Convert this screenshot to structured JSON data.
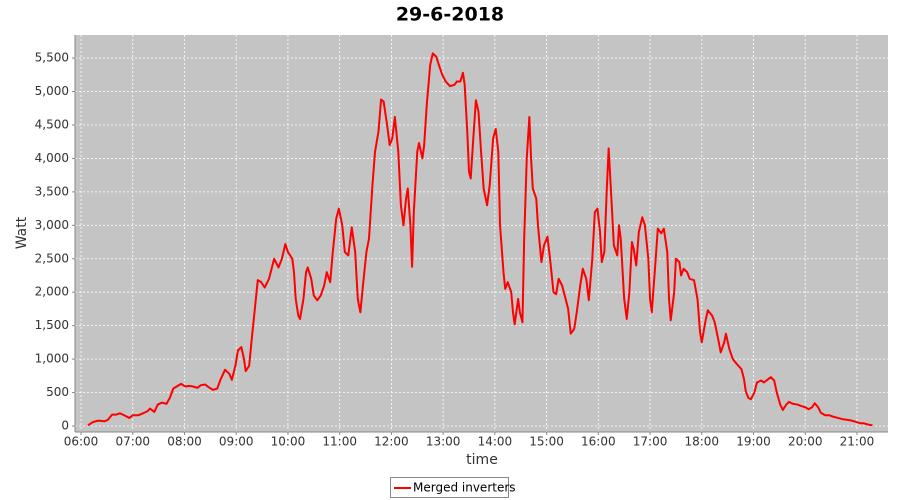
{
  "chart_data": {
    "type": "line",
    "title": "29-6-2018",
    "x_label": "time",
    "y_label": "Watt",
    "grid": true,
    "legend": "bottom",
    "xlim": [
      "05:53",
      "21:36"
    ],
    "xticks": [
      "06:00",
      "07:00",
      "08:00",
      "09:00",
      "10:00",
      "11:00",
      "12:00",
      "13:00",
      "14:00",
      "15:00",
      "16:00",
      "17:00",
      "18:00",
      "19:00",
      "20:00",
      "21:00"
    ],
    "ylim": [
      -90,
      5845
    ],
    "yticks": [
      0,
      500,
      {
        "value": 1000,
        "label": "1,000"
      },
      {
        "value": 1500,
        "label": "1,500"
      },
      {
        "value": 2000,
        "label": "2,000"
      },
      {
        "value": 2500,
        "label": "2,500"
      },
      {
        "value": 3000,
        "label": "3,000"
      },
      {
        "value": 3500,
        "label": "3,500"
      },
      {
        "value": 4000,
        "label": "4,000"
      },
      {
        "value": 4500,
        "label": "4,500"
      },
      {
        "value": 5000,
        "label": "5,000"
      },
      {
        "value": 5500,
        "label": "5,500"
      }
    ],
    "x": [
      "06:08",
      "06:14",
      "06:20",
      "06:27",
      "06:31",
      "06:36",
      "06:41",
      "06:45",
      "06:50",
      "06:56",
      "07:00",
      "07:06",
      "07:12",
      "07:17",
      "07:20",
      "07:25",
      "07:29",
      "07:34",
      "07:39",
      "07:43",
      "07:47",
      "07:51",
      "07:56",
      "08:01",
      "08:05",
      "08:10",
      "08:15",
      "08:19",
      "08:24",
      "08:28",
      "08:33",
      "08:38",
      "08:42",
      "08:47",
      "08:52",
      "08:55",
      "08:59",
      "09:02",
      "09:06",
      "09:09",
      "09:11",
      "09:15",
      "09:18",
      "09:22",
      "09:25",
      "09:29",
      "09:33",
      "09:38",
      "09:44",
      "09:49",
      "09:53",
      "09:57",
      "10:00",
      "10:05",
      "10:07",
      "10:09",
      "10:12",
      "10:14",
      "10:18",
      "10:21",
      "10:23",
      "10:27",
      "10:30",
      "10:34",
      "10:38",
      "10:42",
      "10:45",
      "10:49",
      "10:52",
      "10:56",
      "10:59",
      "11:03",
      "11:06",
      "11:10",
      "11:14",
      "11:18",
      "11:21",
      "11:24",
      "11:27",
      "11:31",
      "11:34",
      "11:38",
      "11:41",
      "11:45",
      "11:48",
      "11:51",
      "11:55",
      "11:58",
      "12:01",
      "12:04",
      "12:08",
      "12:11",
      "12:14",
      "12:17",
      "12:19",
      "12:22",
      "12:24",
      "12:26",
      "12:30",
      "12:32",
      "12:36",
      "12:38",
      "12:41",
      "12:45",
      "12:48",
      "12:52",
      "12:55",
      "12:59",
      "13:03",
      "13:08",
      "13:13",
      "13:16",
      "13:20",
      "13:23",
      "13:25",
      "13:28",
      "13:30",
      "13:32",
      "13:35",
      "13:38",
      "13:41",
      "13:44",
      "13:47",
      "13:51",
      "13:54",
      "13:58",
      "14:01",
      "14:04",
      "14:06",
      "14:10",
      "14:12",
      "14:15",
      "14:19",
      "14:21",
      "14:23",
      "14:27",
      "14:29",
      "14:32",
      "14:34",
      "14:37",
      "14:40",
      "14:42",
      "14:44",
      "14:48",
      "14:50",
      "14:54",
      "14:57",
      "15:01",
      "15:04",
      "15:08",
      "15:11",
      "15:14",
      "15:18",
      "15:21",
      "15:25",
      "15:28",
      "15:32",
      "15:35",
      "15:39",
      "15:42",
      "15:46",
      "15:49",
      "15:53",
      "15:56",
      "15:59",
      "16:02",
      "16:04",
      "16:07",
      "16:10",
      "16:12",
      "16:16",
      "16:18",
      "16:22",
      "16:24",
      "16:26",
      "16:30",
      "16:33",
      "16:36",
      "16:39",
      "16:41",
      "16:44",
      "16:47",
      "16:51",
      "16:54",
      "16:58",
      "17:00",
      "17:02",
      "17:06",
      "17:09",
      "17:13",
      "17:16",
      "17:20",
      "17:22",
      "17:24",
      "17:28",
      "17:30",
      "17:34",
      "17:36",
      "17:39",
      "17:43",
      "17:46",
      "17:51",
      "17:55",
      "17:58",
      "18:00",
      "18:04",
      "18:07",
      "18:12",
      "18:15",
      "18:19",
      "18:22",
      "18:26",
      "18:28",
      "18:32",
      "18:36",
      "18:41",
      "18:46",
      "18:49",
      "18:51",
      "18:54",
      "18:57",
      "19:01",
      "19:04",
      "19:09",
      "19:12",
      "19:17",
      "19:20",
      "19:24",
      "19:27",
      "19:31",
      "19:34",
      "19:38",
      "19:41",
      "19:46",
      "19:51",
      "19:55",
      "20:00",
      "20:04",
      "20:08",
      "20:11",
      "20:15",
      "20:18",
      "20:23",
      "20:28",
      "20:32",
      "20:38",
      "20:44",
      "20:50",
      "20:54",
      "20:59",
      "21:04",
      "21:08",
      "21:13",
      "21:18"
    ],
    "series": [
      {
        "name": "Merged inverters",
        "color": "#ff0000",
        "values": [
          10,
          60,
          80,
          70,
          90,
          170,
          170,
          190,
          160,
          120,
          160,
          160,
          190,
          220,
          260,
          210,
          320,
          350,
          330,
          420,
          560,
          590,
          630,
          590,
          600,
          590,
          570,
          610,
          620,
          580,
          540,
          560,
          700,
          840,
          780,
          690,
          900,
          1130,
          1180,
          1000,
          820,
          900,
          1300,
          1800,
          2180,
          2150,
          2070,
          2200,
          2500,
          2370,
          2500,
          2720,
          2600,
          2500,
          2300,
          1900,
          1650,
          1600,
          1900,
          2300,
          2370,
          2200,
          1950,
          1880,
          1950,
          2100,
          2300,
          2150,
          2600,
          3100,
          3250,
          3000,
          2600,
          2550,
          2970,
          2600,
          1900,
          1700,
          2100,
          2600,
          2800,
          3600,
          4100,
          4400,
          4880,
          4850,
          4500,
          4200,
          4300,
          4620,
          4100,
          3300,
          3000,
          3400,
          3550,
          3000,
          2380,
          3200,
          4100,
          4230,
          4000,
          4200,
          4800,
          5400,
          5570,
          5520,
          5400,
          5250,
          5150,
          5080,
          5100,
          5150,
          5150,
          5280,
          5100,
          4400,
          3800,
          3700,
          4300,
          4870,
          4700,
          4100,
          3550,
          3300,
          3600,
          4300,
          4440,
          4100,
          3000,
          2300,
          2050,
          2150,
          2000,
          1700,
          1520,
          1900,
          1700,
          1550,
          2800,
          4000,
          4620,
          4000,
          3550,
          3400,
          3000,
          2450,
          2700,
          2830,
          2500,
          2000,
          1970,
          2200,
          2100,
          1950,
          1750,
          1380,
          1450,
          1700,
          2100,
          2350,
          2200,
          1880,
          2500,
          3200,
          3250,
          2900,
          2450,
          2600,
          3600,
          4150,
          3200,
          2700,
          2550,
          3000,
          2800,
          1900,
          1600,
          2000,
          2750,
          2650,
          2400,
          2900,
          3120,
          3000,
          2500,
          1900,
          1700,
          2400,
          2950,
          2880,
          2950,
          2600,
          1900,
          1580,
          2000,
          2500,
          2450,
          2250,
          2350,
          2300,
          2200,
          2180,
          1900,
          1400,
          1250,
          1550,
          1730,
          1650,
          1550,
          1300,
          1100,
          1250,
          1380,
          1150,
          1000,
          920,
          850,
          700,
          520,
          420,
          400,
          500,
          650,
          680,
          650,
          700,
          730,
          680,
          500,
          320,
          240,
          320,
          360,
          330,
          320,
          300,
          280,
          250,
          280,
          340,
          280,
          200,
          160,
          160,
          140,
          120,
          100,
          90,
          80,
          60,
          40,
          40,
          20,
          10
        ]
      }
    ]
  }
}
